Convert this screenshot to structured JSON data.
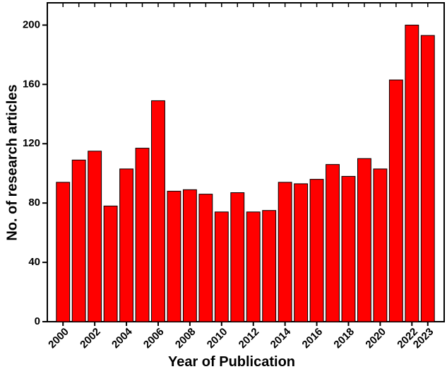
{
  "chart_data": {
    "type": "bar",
    "x_label": "Year of Publication",
    "y_label": "No. of research articles",
    "categories": [
      "2000",
      null,
      "2002",
      null,
      "2004",
      null,
      "2006",
      null,
      "2008",
      null,
      "2010",
      null,
      "2012",
      null,
      "2014",
      null,
      "2016",
      null,
      "2018",
      null,
      "2020",
      null,
      "2022",
      "2023"
    ],
    "values": [
      94,
      109,
      115,
      78,
      103,
      117,
      149,
      88,
      89,
      86,
      74,
      87,
      74,
      75,
      94,
      93,
      96,
      106,
      98,
      110,
      103,
      163,
      200,
      193
    ],
    "color": "#ff0000",
    "ylim": [
      0,
      215
    ],
    "yticks": [
      0,
      40,
      80,
      120,
      160,
      200
    ],
    "grid": false
  }
}
